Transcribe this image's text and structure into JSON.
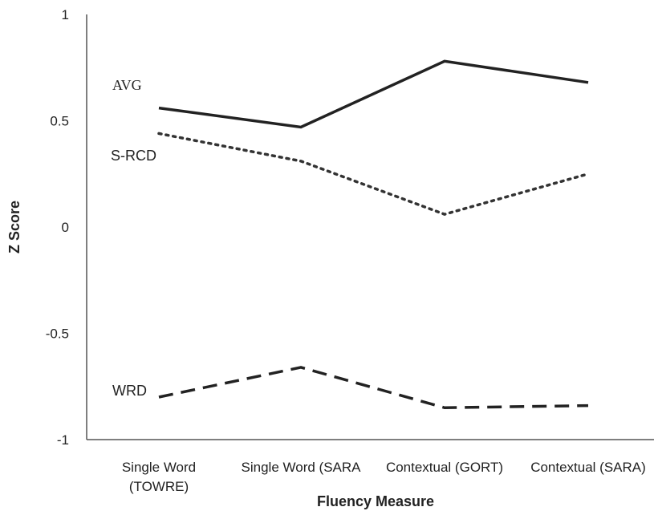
{
  "chart_data": {
    "type": "line",
    "title": "",
    "xlabel": "Fluency Measure",
    "ylabel": "Z Score",
    "ylim": [
      -1,
      1
    ],
    "yticks": [
      {
        "value": 1,
        "label": "1"
      },
      {
        "value": 0.5,
        "label": "0.5"
      },
      {
        "value": 0,
        "label": "0"
      },
      {
        "value": -0.5,
        "label": "-0.5"
      },
      {
        "value": -1,
        "label": "-1"
      }
    ],
    "categories": [
      {
        "line1": "Single Word",
        "line2": "(TOWRE)"
      },
      {
        "line1": "Single Word (SARA",
        "line2": ""
      },
      {
        "line1": "Contextual (GORT)",
        "line2": ""
      },
      {
        "line1": "Contextual (SARA)",
        "line2": ""
      }
    ],
    "grid": false,
    "legend": "none",
    "series": [
      {
        "name": "AVG",
        "style": "solid",
        "color": "#222222",
        "values": [
          0.56,
          0.47,
          0.78,
          0.68
        ]
      },
      {
        "name": "S-RCD",
        "style": "dotted",
        "color": "#333333",
        "values": [
          0.44,
          0.31,
          0.06,
          0.25
        ]
      },
      {
        "name": "WRD",
        "style": "dashed",
        "color": "#222222",
        "values": [
          -0.8,
          -0.66,
          -0.85,
          -0.84
        ]
      }
    ]
  }
}
